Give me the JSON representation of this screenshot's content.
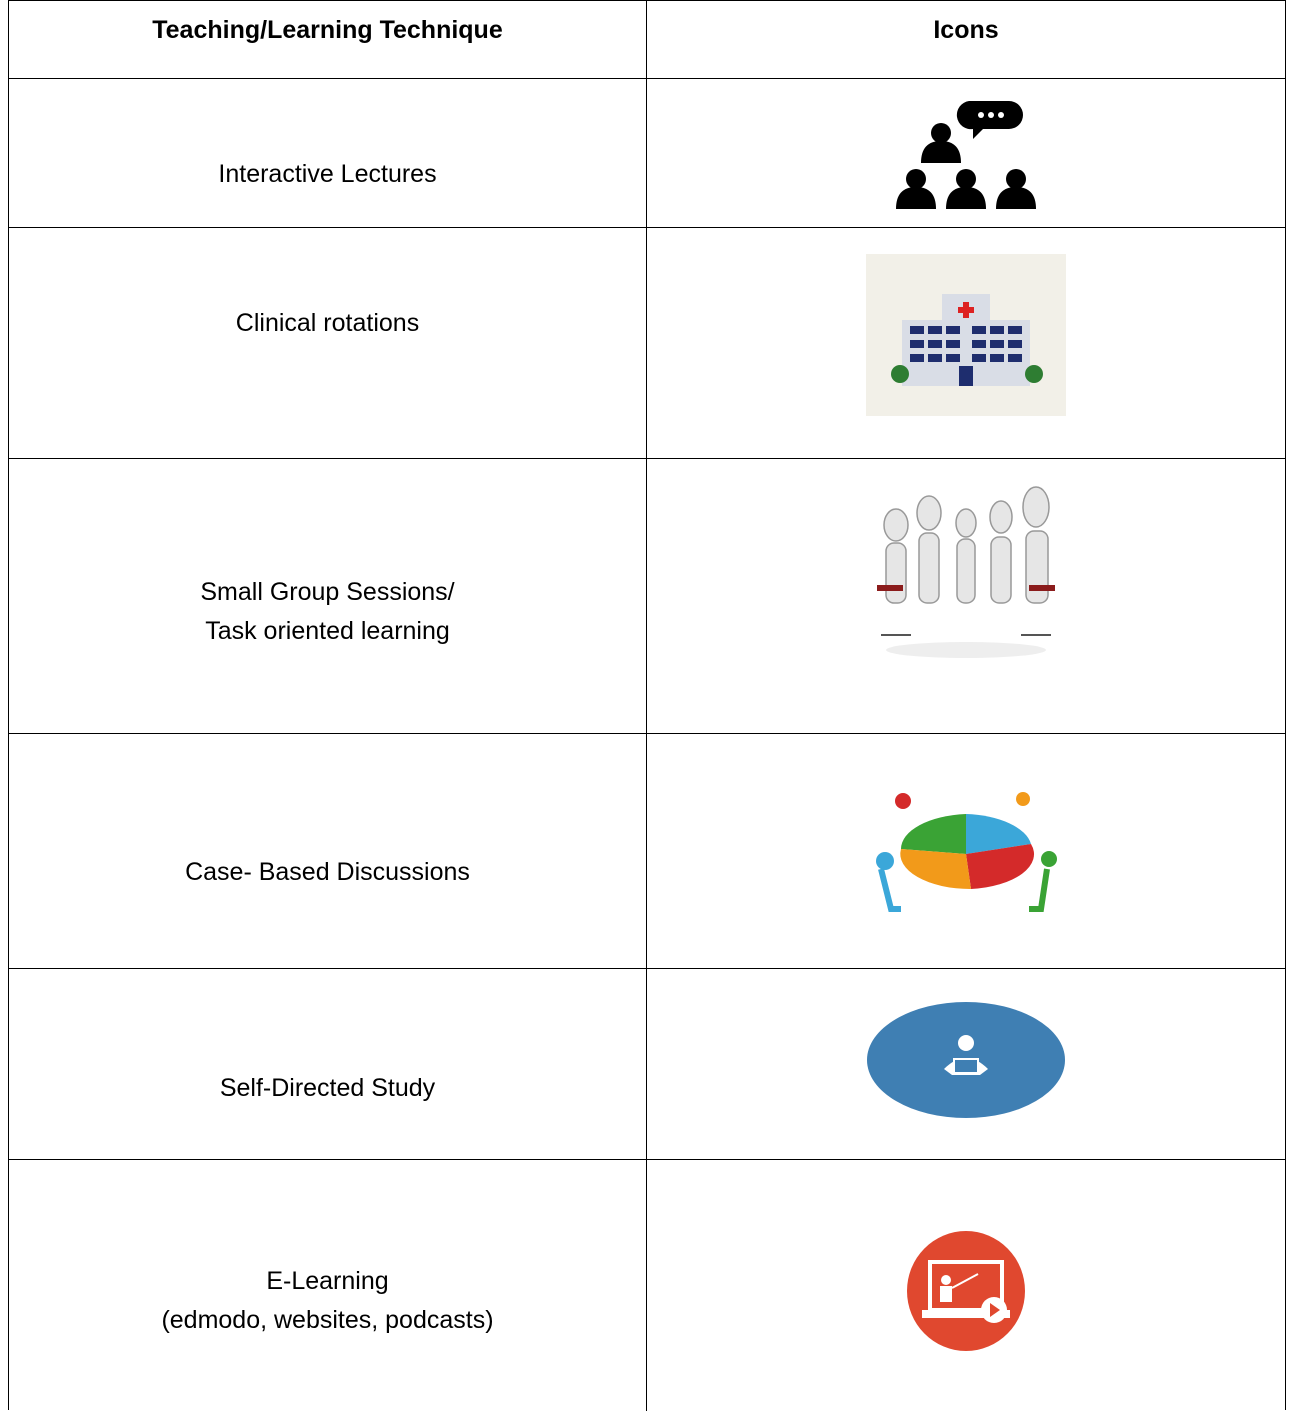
{
  "table": {
    "header": [
      "Teaching/Learning Technique",
      "Icons"
    ],
    "rows": [
      [
        "Interactive Lectures"
      ],
      [
        "Clinical rotations"
      ],
      [
        "Small Group Sessions/",
        "Task oriented learning"
      ],
      [
        "Case- Based Discussions"
      ],
      [
        "Self-Directed Study"
      ],
      [
        "E-Learning",
        "(edmodo, websites, podcasts)"
      ]
    ]
  }
}
